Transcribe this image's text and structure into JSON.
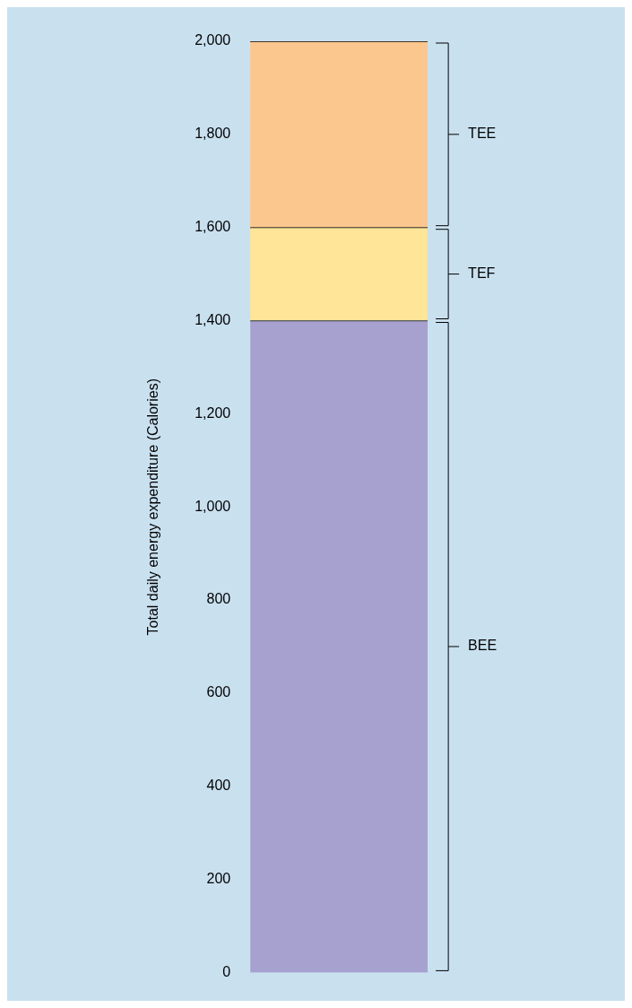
{
  "chart_data": {
    "type": "bar",
    "ylabel": "Total daily energy expenditure (Calories)",
    "categories": [
      null
    ],
    "stacked": true,
    "series": [
      {
        "name": "BEE",
        "color": "#a7a1d0",
        "values": [
          1400
        ]
      },
      {
        "name": "TEF",
        "color": "#fee597",
        "values": [
          200
        ]
      },
      {
        "name": "TEE",
        "color": "#fbc78e",
        "values": [
          400
        ]
      }
    ],
    "ylim": [
      0,
      2000
    ],
    "yticks": [
      0,
      200,
      400,
      600,
      800,
      {
        "value": 1000,
        "label": "1,000"
      },
      {
        "value": 1200,
        "label": "1,200"
      },
      {
        "value": 1400,
        "label": "1,400"
      },
      {
        "value": 1600,
        "label": "1,600"
      },
      {
        "value": 1800,
        "label": "1,800"
      },
      {
        "value": 2000,
        "label": "2,000"
      }
    ],
    "grid": false,
    "legend": false
  }
}
